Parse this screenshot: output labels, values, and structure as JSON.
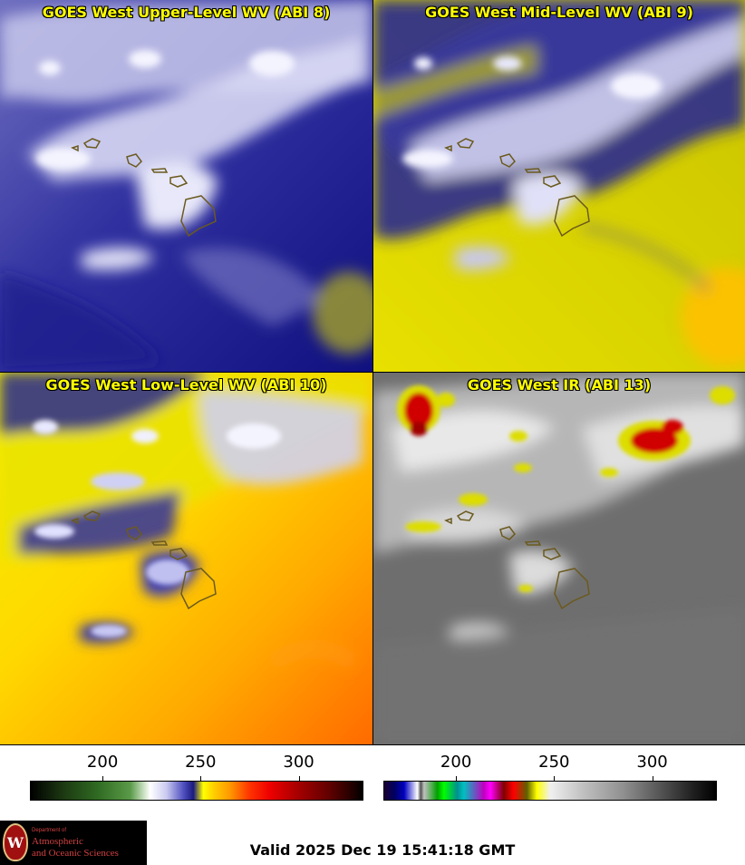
{
  "panels": [
    {
      "title": "GOES West Upper-Level WV (ABI 8)"
    },
    {
      "title": "GOES West Mid-Level WV (ABI 9)"
    },
    {
      "title": "GOES West Low-Level WV (ABI 10)"
    },
    {
      "title": "GOES West IR (ABI 13)"
    }
  ],
  "colorbars": {
    "wv": {
      "ticks": [
        "200",
        "250",
        "300"
      ],
      "values": [
        200,
        250,
        300
      ],
      "range": [
        163,
        333
      ]
    },
    "ir": {
      "ticks": [
        "200",
        "250",
        "300"
      ],
      "values": [
        200,
        250,
        300
      ],
      "range": [
        163,
        333
      ]
    }
  },
  "logo": {
    "line1": "Department of",
    "line2": "Atmospheric",
    "line3": "and Oceanic Sciences",
    "seal_letter": "W"
  },
  "valid_time": "Valid 2025 Dec 19 15:41:18 GMT",
  "colors": {
    "title_text": "#ffff00",
    "wv_dry": "#ffff00",
    "wv_moist": "#1a1a80",
    "ir_cold": "#ee0000"
  }
}
